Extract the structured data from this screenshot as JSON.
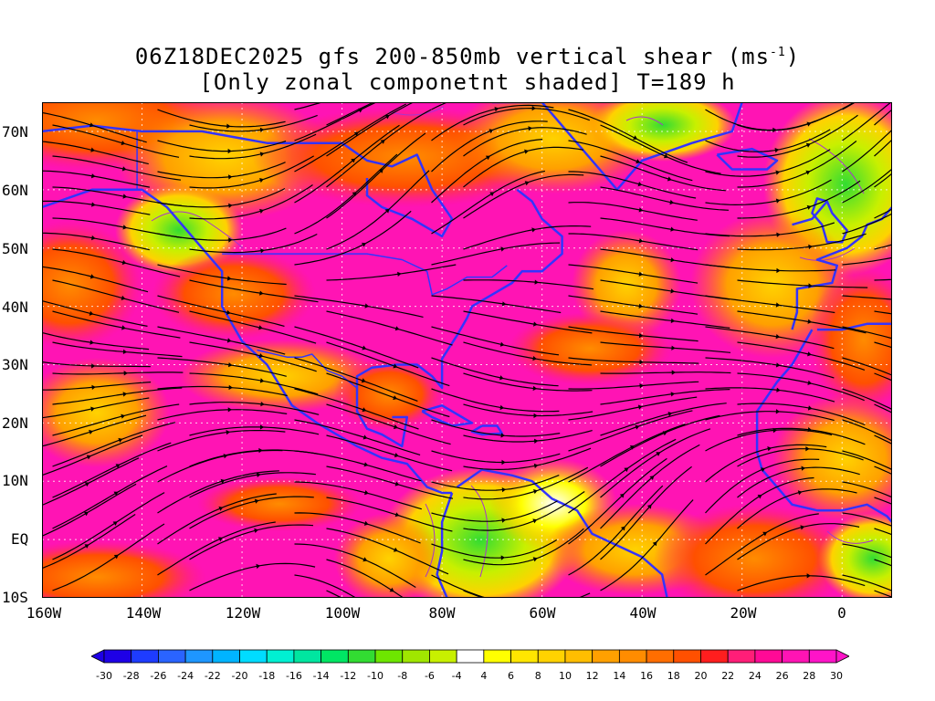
{
  "title": {
    "line1_pre": "06Z18DEC2025 gfs 200-850mb vertical shear (ms",
    "line1_sup": "-1",
    "line1_post": ")",
    "line2": "[Only zonal componetnt shaded] T=189 h"
  },
  "map": {
    "lat_labels": [
      "70N",
      "60N",
      "50N",
      "40N",
      "30N",
      "20N",
      "10N",
      "EQ",
      "10S"
    ],
    "lon_labels": [
      "160W",
      "140W",
      "120W",
      "100W",
      "80W",
      "60W",
      "40W",
      "20W",
      "0"
    ],
    "lat_range": [
      -10,
      75
    ],
    "lon_range": [
      -160,
      10
    ],
    "grid": "dotted",
    "coastline_color": "#3333ff",
    "contour_color": "#aa33cc",
    "streamline_color": "#000000"
  },
  "colorbar": {
    "levels": [
      -30,
      -28,
      -26,
      -24,
      -22,
      -20,
      -18,
      -16,
      -14,
      -12,
      -10,
      -8,
      -6,
      -4,
      4,
      6,
      8,
      10,
      12,
      14,
      16,
      18,
      20,
      22,
      24,
      26,
      28,
      30
    ],
    "labels": [
      "-30",
      "-28",
      "-26",
      "-24",
      "-22",
      "-20",
      "-18",
      "-16",
      "-14",
      "-12",
      "-10",
      "-8",
      "-6",
      "-4",
      "4",
      "6",
      "8",
      "10",
      "12",
      "14",
      "16",
      "18",
      "20",
      "22",
      "24",
      "26",
      "28",
      "30"
    ],
    "colors": [
      "#1e00e6",
      "#1e3cff",
      "#2a64ff",
      "#1e96ff",
      "#00b4ff",
      "#00dcff",
      "#00f0d2",
      "#00e6a0",
      "#00e664",
      "#32dc32",
      "#6ee600",
      "#a0e600",
      "#c8f000",
      "#ffffff",
      "#ffff00",
      "#ffe600",
      "#ffd200",
      "#ffbe00",
      "#ffa000",
      "#ff8c00",
      "#ff6e00",
      "#ff5000",
      "#ff1e1e",
      "#ff1e78",
      "#ff0a96",
      "#ff14b4",
      "#ff14c8"
    ]
  }
}
